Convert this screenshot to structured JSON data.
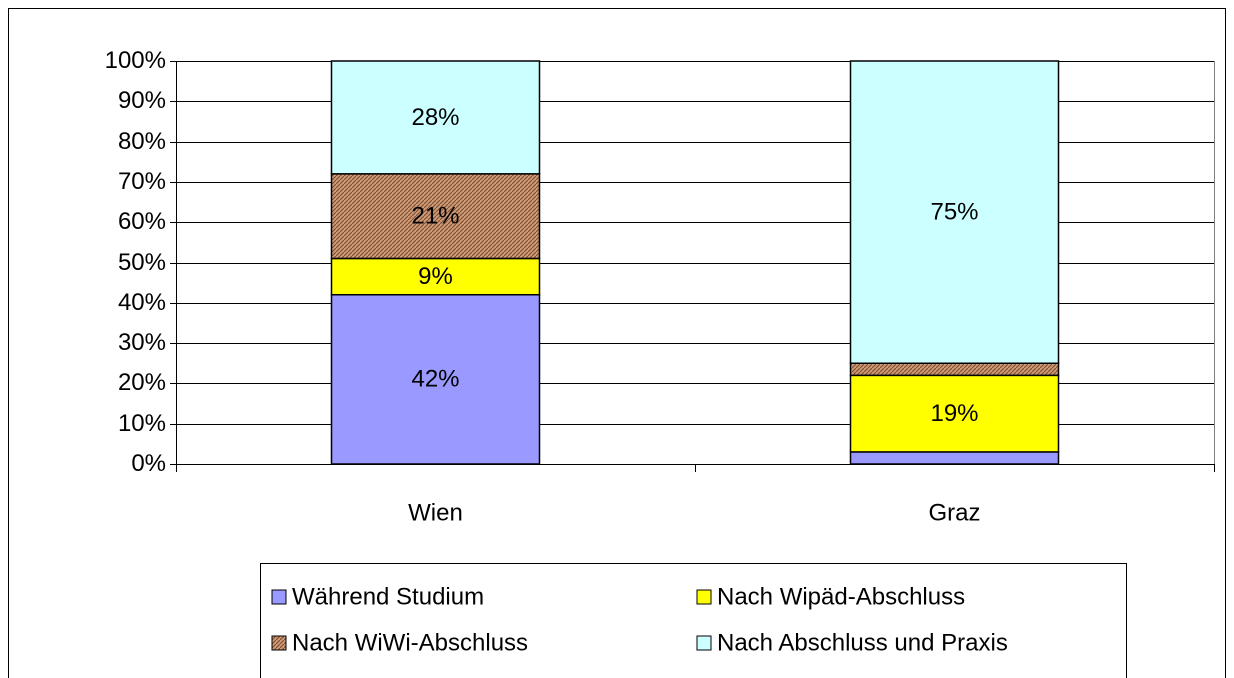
{
  "chart_data": {
    "type": "stacked_bar",
    "categories": [
      "Wien",
      "Graz"
    ],
    "series": [
      {
        "name": "Während Studium",
        "color": "#9999ff",
        "values": [
          42,
          3
        ],
        "value_labels": [
          "42%",
          null
        ]
      },
      {
        "name": "Nach Wipäd-Abschluss",
        "color": "#ffff00",
        "values": [
          9,
          19
        ],
        "value_labels": [
          "9%",
          "19%"
        ]
      },
      {
        "name": "Nach WiWi-Abschluss",
        "color": "#cc9977",
        "hatch": true,
        "values": [
          21,
          3
        ],
        "value_labels": [
          "21%",
          null
        ]
      },
      {
        "name": "Nach Abschluss und Praxis",
        "color": "#ccffff",
        "values": [
          28,
          75
        ],
        "value_labels": [
          "28%",
          "75%"
        ]
      }
    ],
    "ylim": [
      0,
      100
    ],
    "yticks": [
      {
        "value": 0,
        "label": "0%"
      },
      {
        "value": 10,
        "label": "10%"
      },
      {
        "value": 20,
        "label": "20%"
      },
      {
        "value": 30,
        "label": "30%"
      },
      {
        "value": 40,
        "label": "40%"
      },
      {
        "value": 50,
        "label": "50%"
      },
      {
        "value": 60,
        "label": "60%"
      },
      {
        "value": 70,
        "label": "70%"
      },
      {
        "value": 80,
        "label": "80%"
      },
      {
        "value": 90,
        "label": "90%"
      },
      {
        "value": 100,
        "label": "100%"
      }
    ],
    "grid": true
  }
}
